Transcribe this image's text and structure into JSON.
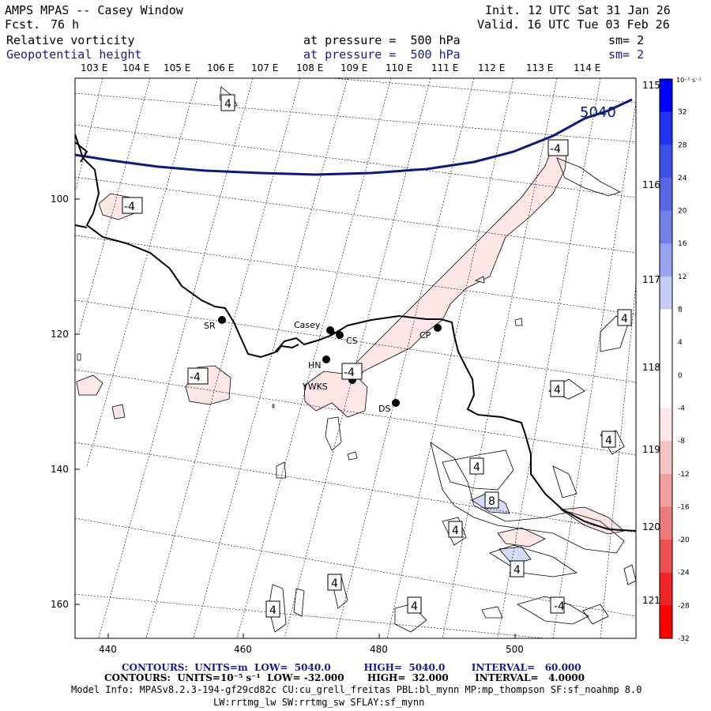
{
  "header": {
    "title": "AMPS MPAS -- Casey Window",
    "fcst_label": "Fcst.",
    "fcst_value": "76 h",
    "init": "Init. 12 UTC Sat 31 Jan 26",
    "valid": "Valid. 16 UTC Tue 03 Feb 26",
    "field1_name": "Relative vorticity",
    "field1_level": "at pressure =  500 hPa",
    "field1_sm": "sm= 2",
    "field2_name": "Geopotential height",
    "field2_level": "at pressure =  500 hPa",
    "field2_sm": "sm= 2"
  },
  "map": {
    "top_lon_labels": [
      "103 E",
      "104 E",
      "105 E",
      "106 E",
      "107 E",
      "108 E",
      "109 E",
      "110 E",
      "111 E",
      "112 E",
      "113 E",
      "114 E"
    ],
    "right_lon_labels": [
      "115 E",
      "116 E",
      "117 E",
      "118 E",
      "119 E",
      "120 E",
      "121 E"
    ],
    "x_ticks": [
      "440",
      "460",
      "480",
      "500"
    ],
    "y_ticks": [
      "100",
      "120",
      "140",
      "160"
    ],
    "height_contour_label": "5040",
    "vorticity_labels": [
      "4",
      "-4",
      "-4",
      "-4",
      "-4",
      "4",
      "4",
      "4",
      "4",
      "8",
      "4",
      "4",
      "4",
      "4",
      "4",
      "-4"
    ],
    "stations": [
      {
        "name": "Casey"
      },
      {
        "name": "CS"
      },
      {
        "name": "SR"
      },
      {
        "name": "HN"
      },
      {
        "name": "YWKS"
      },
      {
        "name": "DS"
      },
      {
        "name": "CP"
      }
    ],
    "colors": {
      "height_contour": "#0a1a80",
      "coast": "#000000",
      "neg_fill": "#fde6e6",
      "pos_fill": "#d6dcf6"
    }
  },
  "colorbar": {
    "units": "10⁻⁵ s⁻¹",
    "levels": [
      "32",
      "28",
      "24",
      "20",
      "16",
      "12",
      "8",
      "4",
      "0",
      "-4",
      "-8",
      "-12",
      "-16",
      "-20",
      "-24",
      "-28",
      "-32"
    ],
    "colors": [
      "#0000ff",
      "#2431ee",
      "#3c4fe6",
      "#5866e6",
      "#7280ea",
      "#98a4ee",
      "#c4cbf6",
      "#ffffff",
      "#ffffff",
      "#ffffff",
      "#fde6e6",
      "#f6c4c4",
      "#f2a0a0",
      "#ee7c7c",
      "#ec5050",
      "#f02424",
      "#ff0000"
    ]
  },
  "footer": {
    "contours1": "CONTOURS:  UNITS=m  LOW=  5040.0          HIGH=  5040.0        INTERVAL=   60.000",
    "contours2": "CONTOURS:  UNITS=10⁻⁵ s⁻¹  LOW= -32.000       HIGH=  32.000        INTERVAL=   4.0000",
    "model_info": "Model Info: MPASv8.2.3-194-gf29cd82c CU:cu_grell_freitas PBL:bl_mynn MP:mp_thompson SF:sf_noahmp 8.0",
    "model_info2": "LW:rrtmg_lw SW:rrtmg_sw SFLAY:sf_mynn"
  }
}
